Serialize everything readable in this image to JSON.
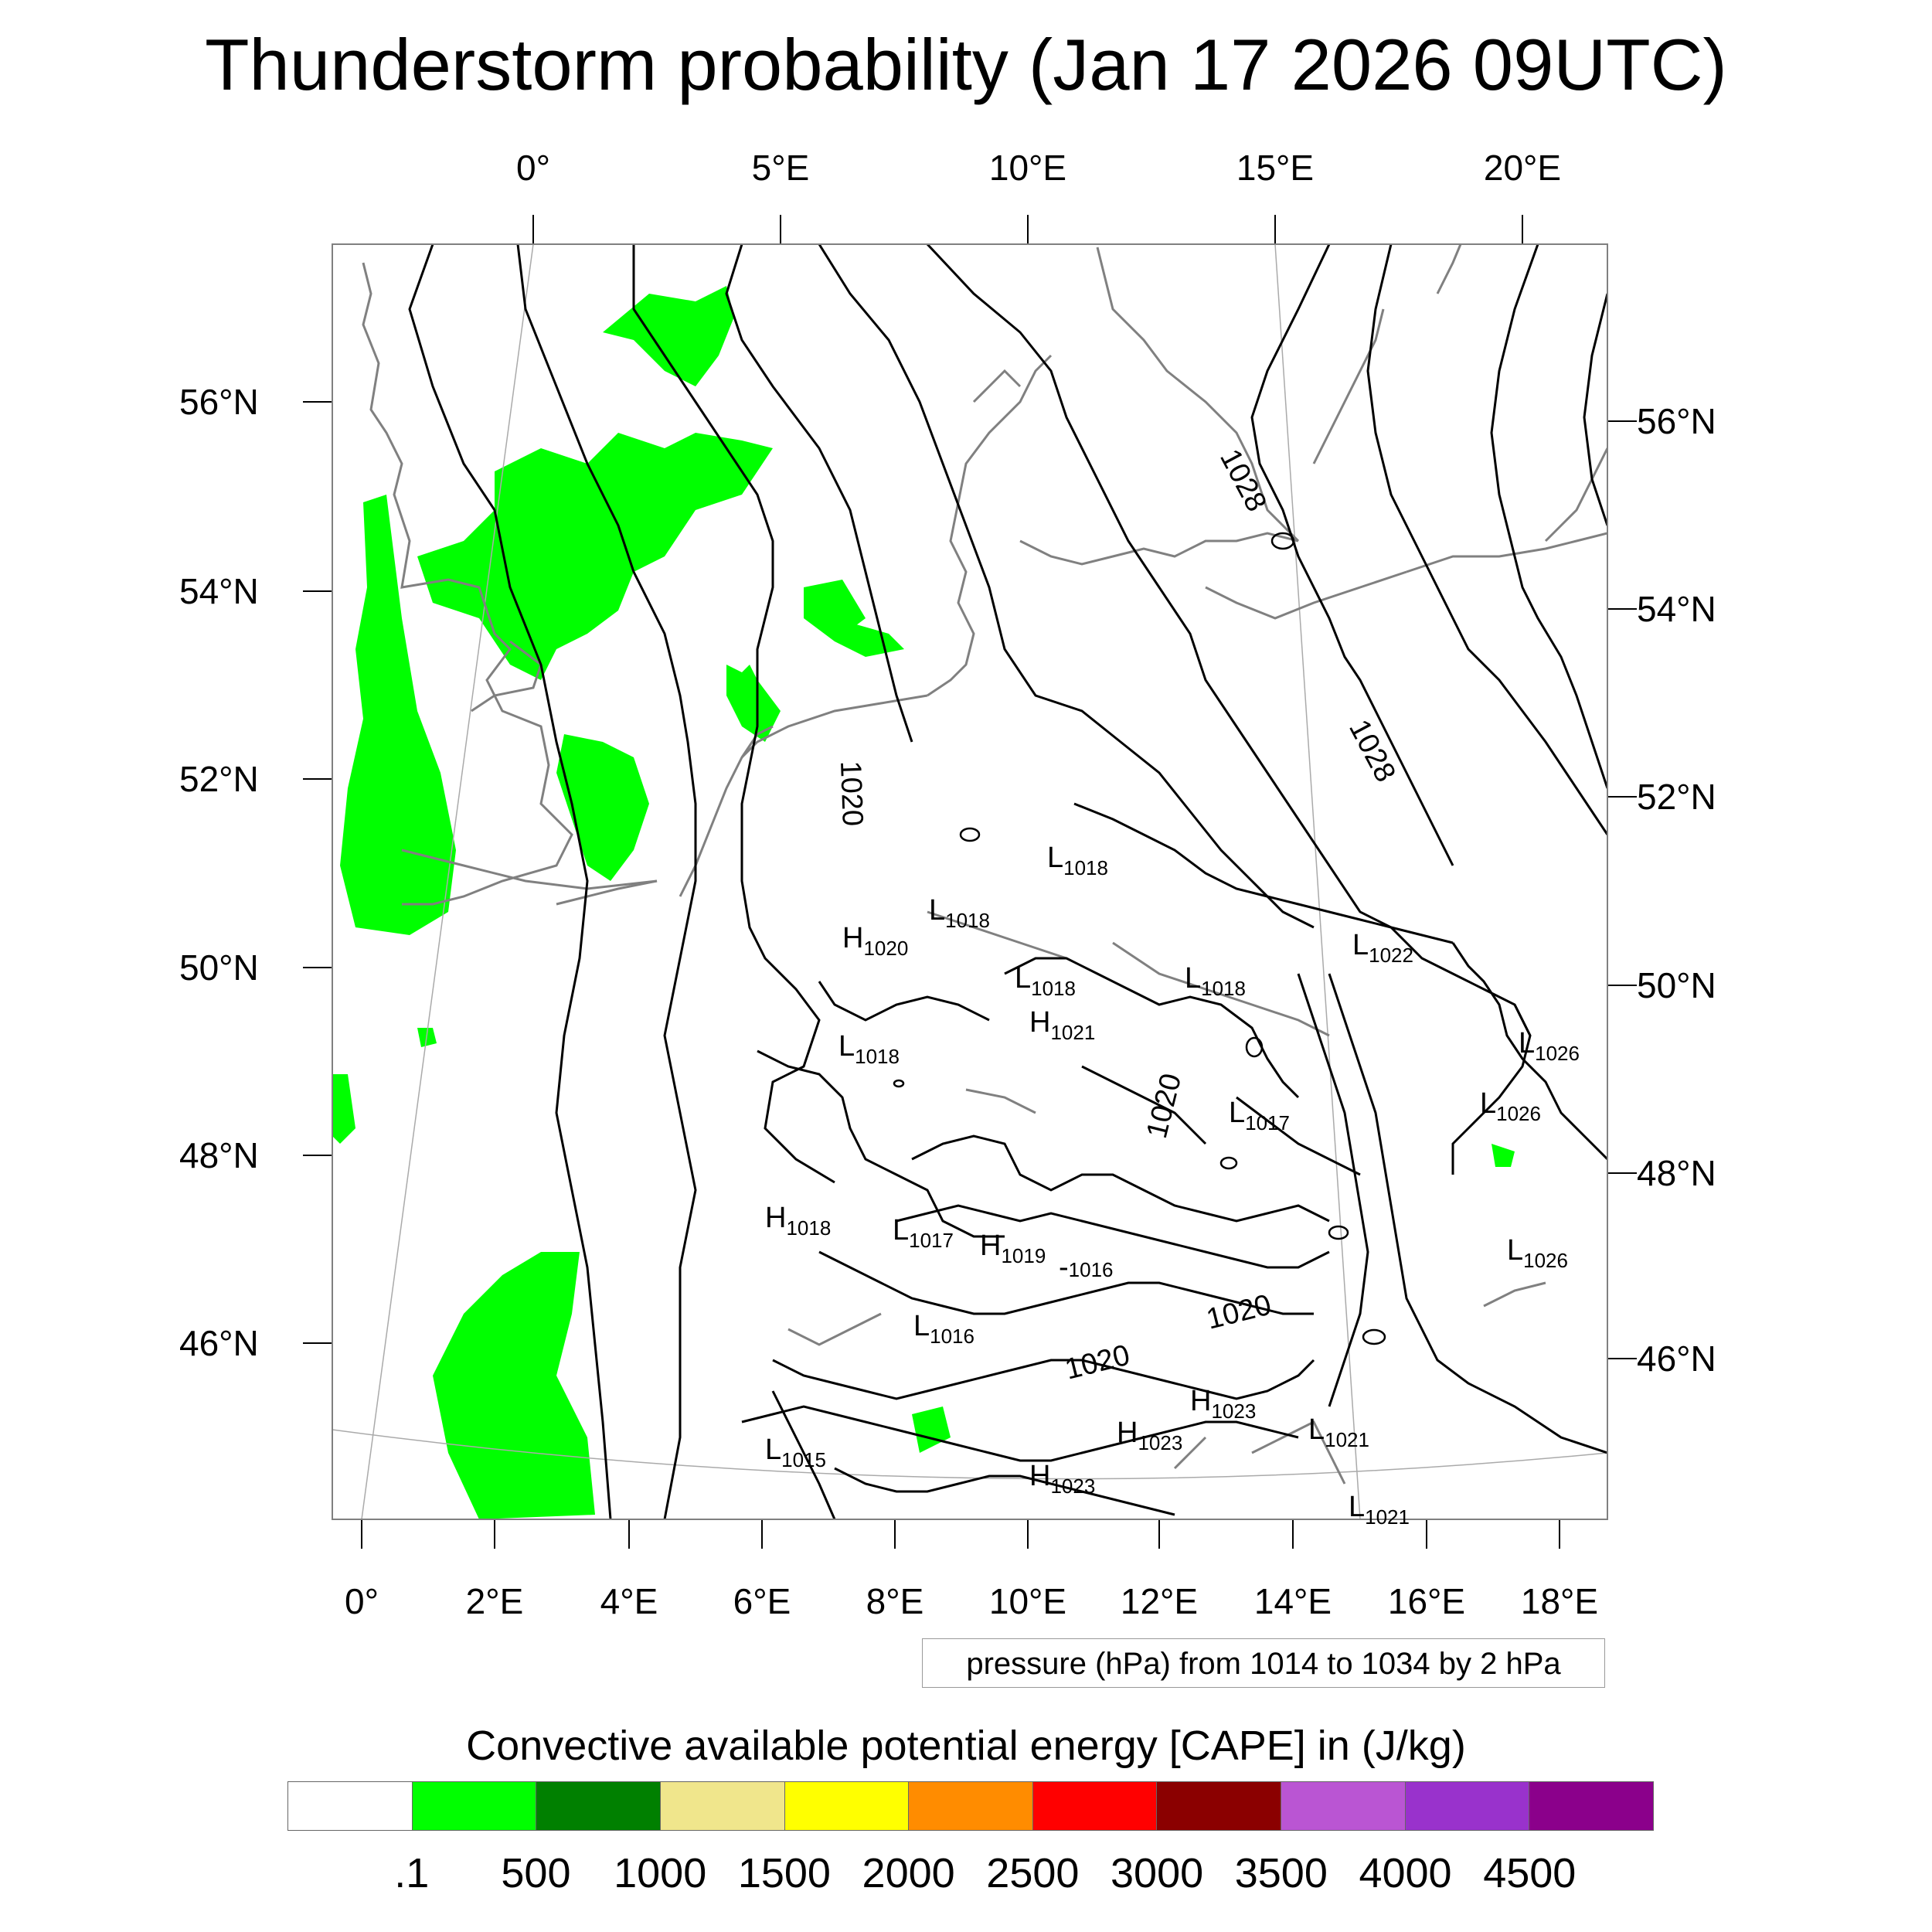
{
  "title": "Thunderstorm probability (Jan 17 2026 09UTC)",
  "top_axis_labels": [
    "0°",
    "5°E",
    "10°E",
    "15°E",
    "20°E"
  ],
  "bottom_axis_labels": [
    "0°",
    "2°E",
    "4°E",
    "6°E",
    "8°E",
    "10°E",
    "12°E",
    "14°E",
    "16°E",
    "18°E"
  ],
  "left_axis_labels": [
    "56°N",
    "54°N",
    "52°N",
    "50°N",
    "48°N",
    "46°N"
  ],
  "right_axis_labels": [
    "56°N",
    "54°N",
    "52°N",
    "50°N",
    "48°N",
    "46°N"
  ],
  "pressure_note": "pressure (hPa) from 1014 to 1034 by 2 hPa",
  "colorbar": {
    "title": "Convective available potential energy [CAPE] in (J/kg)",
    "colors": [
      "#ffffff",
      "#00ff00",
      "#008000",
      "#f0e68c",
      "#ffff00",
      "#ff8c00",
      "#ff0000",
      "#8b0000",
      "#ba55d3",
      "#9932cc",
      "#8b008b"
    ],
    "labels": [
      ".1",
      "500",
      "1000",
      "1500",
      "2000",
      "2500",
      "3000",
      "3500",
      "4000",
      "4500"
    ]
  },
  "pressure_systems": [
    {
      "type": "L",
      "value": "1018"
    },
    {
      "type": "L",
      "value": "1018"
    },
    {
      "type": "H",
      "value": "1020"
    },
    {
      "type": "L",
      "value": "1018"
    },
    {
      "type": "L",
      "value": "1018"
    },
    {
      "type": "H",
      "value": "1021"
    },
    {
      "type": "L",
      "value": "1022"
    },
    {
      "type": "L",
      "value": "1026"
    },
    {
      "type": "L",
      "value": "1018"
    },
    {
      "type": "L",
      "value": "1017"
    },
    {
      "type": "L",
      "value": "1026"
    },
    {
      "type": "H",
      "value": "1018"
    },
    {
      "type": "L",
      "value": "1017"
    },
    {
      "type": "H",
      "value": "1019"
    },
    {
      "type": "L",
      "value": "1026"
    },
    {
      "type": "L",
      "value": "1016"
    },
    {
      "type": "H",
      "value": "1023"
    },
    {
      "type": "H",
      "value": "1023"
    },
    {
      "type": "L",
      "value": "1021"
    },
    {
      "type": "L",
      "value": "1015"
    },
    {
      "type": "H",
      "value": "1023"
    },
    {
      "type": "L",
      "value": "1021"
    }
  ],
  "minor_value": "1016",
  "contour_labels": [
    "1028",
    "1028",
    "1020",
    "1020",
    "1020",
    "1020"
  ]
}
